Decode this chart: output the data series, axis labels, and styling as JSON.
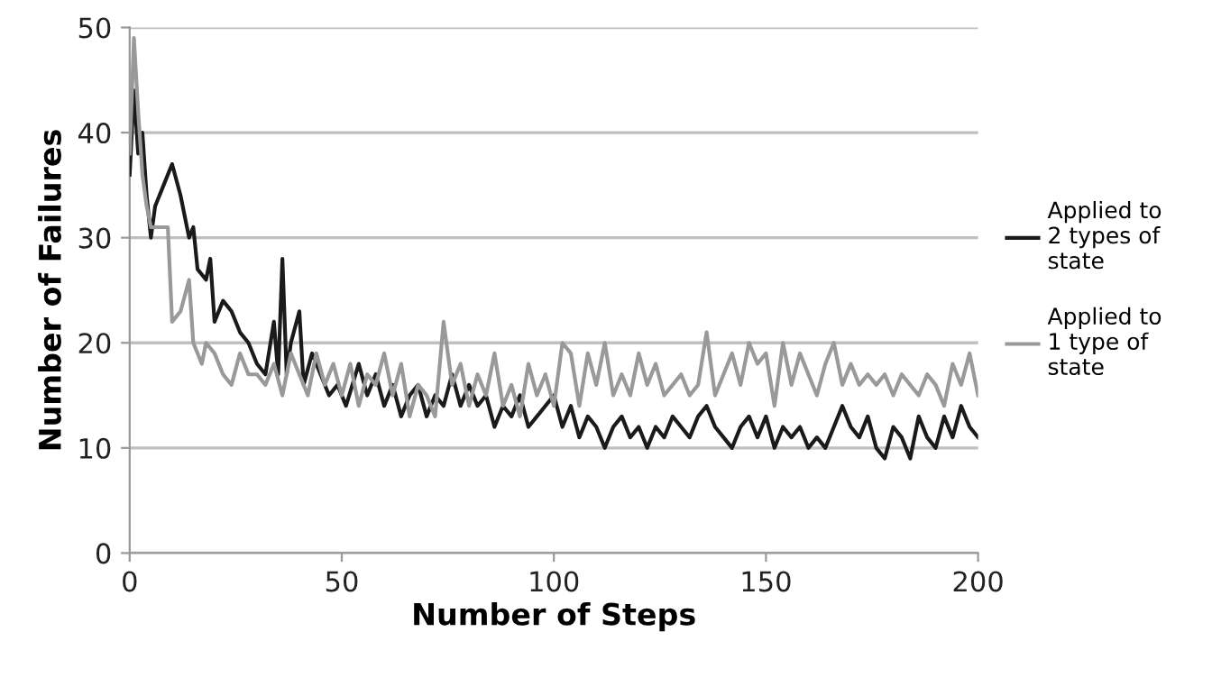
{
  "chart_data": {
    "type": "line",
    "xlabel": "Number of Steps",
    "ylabel": "Number of Failures",
    "xlim": [
      0,
      200
    ],
    "ylim": [
      0,
      50
    ],
    "xticks": [
      0,
      50,
      100,
      150,
      200
    ],
    "yticks": [
      0,
      10,
      20,
      30,
      40,
      50
    ],
    "grid": "y",
    "legend": "right",
    "marker": "none",
    "line_style": "solid",
    "series": [
      {
        "name": "Applied to\n2 types of\nstate",
        "color": "#1a1a1a",
        "x": [
          0,
          1,
          2,
          3,
          4,
          5,
          6,
          8,
          10,
          12,
          14,
          15,
          16,
          18,
          19,
          20,
          22,
          24,
          26,
          28,
          30,
          32,
          34,
          35,
          36,
          37,
          38,
          40,
          41,
          43,
          45,
          47,
          49,
          51,
          54,
          56,
          58,
          60,
          62,
          64,
          66,
          68,
          70,
          72,
          74,
          76,
          78,
          80,
          82,
          84,
          86,
          88,
          90,
          92,
          94,
          96,
          98,
          100,
          102,
          104,
          106,
          108,
          110,
          112,
          114,
          116,
          118,
          120,
          122,
          124,
          126,
          128,
          130,
          132,
          134,
          136,
          138,
          140,
          142,
          144,
          146,
          148,
          150,
          152,
          154,
          156,
          158,
          160,
          162,
          164,
          166,
          168,
          170,
          172,
          174,
          176,
          178,
          180,
          182,
          184,
          186,
          188,
          190,
          192,
          194,
          196,
          198,
          200
        ],
        "values": [
          36,
          44,
          38,
          40,
          34,
          30,
          33,
          35,
          37,
          34,
          30,
          31,
          27,
          26,
          28,
          22,
          24,
          23,
          21,
          20,
          18,
          17,
          22,
          17,
          28,
          17,
          20,
          23,
          16,
          19,
          17,
          15,
          16,
          14,
          18,
          15,
          17,
          14,
          16,
          13,
          15,
          16,
          13,
          15,
          14,
          17,
          14,
          16,
          14,
          15,
          12,
          14,
          13,
          15,
          12,
          13,
          14,
          15,
          12,
          14,
          11,
          13,
          12,
          10,
          12,
          13,
          11,
          12,
          10,
          12,
          11,
          13,
          12,
          11,
          13,
          14,
          12,
          11,
          10,
          12,
          13,
          11,
          13,
          10,
          12,
          11,
          12,
          10,
          11,
          10,
          12,
          14,
          12,
          11,
          13,
          10,
          9,
          12,
          11,
          9,
          13,
          11,
          10,
          13,
          11,
          14,
          12,
          11
        ]
      },
      {
        "name": "Applied to\n1 type of\nstate",
        "color": "#999999",
        "x": [
          0,
          1,
          2,
          3,
          4,
          5,
          7,
          9,
          10,
          12,
          14,
          15,
          17,
          18,
          20,
          22,
          24,
          26,
          28,
          30,
          32,
          34,
          36,
          38,
          40,
          42,
          44,
          46,
          48,
          50,
          52,
          54,
          56,
          58,
          60,
          62,
          64,
          66,
          68,
          70,
          72,
          74,
          76,
          78,
          80,
          82,
          84,
          86,
          88,
          90,
          92,
          94,
          96,
          98,
          100,
          102,
          104,
          106,
          108,
          110,
          112,
          114,
          116,
          118,
          120,
          122,
          124,
          126,
          128,
          130,
          132,
          134,
          136,
          138,
          140,
          142,
          144,
          146,
          148,
          150,
          152,
          154,
          156,
          158,
          160,
          162,
          164,
          166,
          168,
          170,
          172,
          174,
          176,
          178,
          180,
          182,
          184,
          186,
          188,
          190,
          192,
          194,
          196,
          198,
          200
        ],
        "values": [
          38,
          49,
          42,
          36,
          33,
          31,
          31,
          31,
          22,
          23,
          26,
          20,
          18,
          20,
          19,
          17,
          16,
          19,
          17,
          17,
          16,
          18,
          15,
          19,
          17,
          15,
          19,
          16,
          18,
          15,
          18,
          14,
          17,
          16,
          19,
          15,
          18,
          13,
          16,
          15,
          13,
          22,
          16,
          18,
          14,
          17,
          15,
          19,
          14,
          16,
          13,
          18,
          15,
          17,
          14,
          20,
          19,
          14,
          19,
          16,
          20,
          15,
          17,
          15,
          19,
          16,
          18,
          15,
          16,
          17,
          15,
          16,
          21,
          15,
          17,
          19,
          16,
          20,
          18,
          19,
          14,
          20,
          16,
          19,
          17,
          15,
          18,
          20,
          16,
          18,
          16,
          17,
          16,
          17,
          15,
          17,
          16,
          15,
          17,
          16,
          14,
          18,
          16,
          19,
          15
        ]
      }
    ]
  }
}
